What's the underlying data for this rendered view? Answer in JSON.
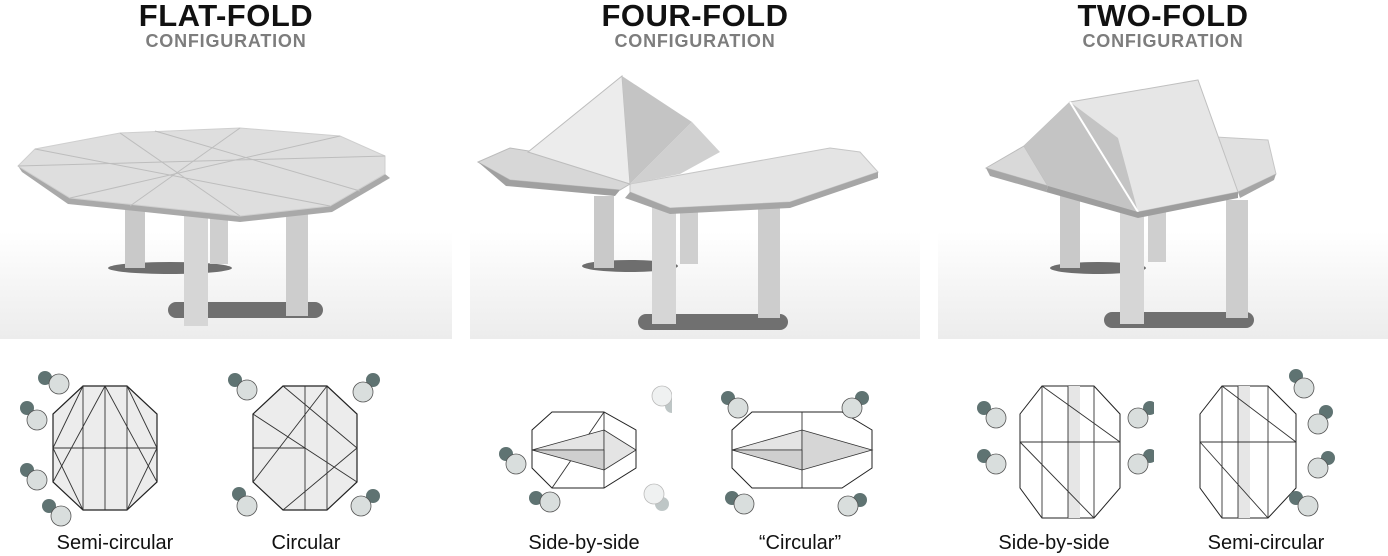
{
  "panels": [
    {
      "title": "FLAT-FOLD",
      "subtitle": "CONFIGURATION",
      "plans": [
        {
          "caption": "Semi-circular"
        },
        {
          "caption": "Circular"
        }
      ]
    },
    {
      "title": "FOUR-FOLD",
      "subtitle": "CONFIGURATION",
      "plans": [
        {
          "caption": "Side-by-side"
        },
        {
          "caption": "“Circular”"
        }
      ]
    },
    {
      "title": "TWO-FOLD",
      "subtitle": "CONFIGURATION",
      "plans": [
        {
          "caption": "Side-by-side"
        },
        {
          "caption": "Semi-circular"
        }
      ]
    }
  ],
  "colors": {
    "title": "#111111",
    "subtitle": "#7d7d7d",
    "table_surface": "#e2e2e2",
    "table_shadow": "#c8c8c8",
    "plan_fill": "#ececec",
    "chair_body": "#d9dedd",
    "chair_back": "#5f7372"
  }
}
